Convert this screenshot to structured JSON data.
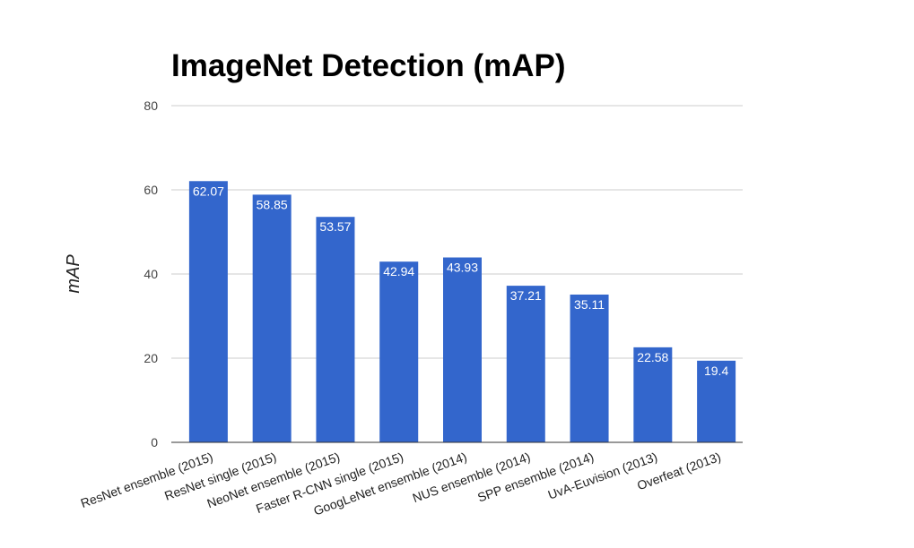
{
  "chart_data": {
    "type": "bar",
    "title": "ImageNet Detection (mAP)",
    "xlabel": "",
    "ylabel": "mAP",
    "ylim": [
      0,
      80
    ],
    "yticks": [
      0,
      20,
      40,
      60,
      80
    ],
    "grid": true,
    "legend": "none",
    "bar_color": "#3366cc",
    "categories": [
      "ResNet ensemble (2015)",
      "ResNet single (2015)",
      "NeoNet ensemble (2015)",
      "Faster R-CNN single (2015)",
      "GoogLeNet ensemble (2014)",
      "NUS ensemble (2014)",
      "SPP ensemble (2014)",
      "UvA-Euvision (2013)",
      "Overfeat (2013)"
    ],
    "values": [
      62.07,
      58.85,
      53.57,
      42.94,
      43.93,
      37.21,
      35.11,
      22.58,
      19.4
    ],
    "data_labels": [
      "62.07",
      "58.85",
      "53.57",
      "42.94",
      "43.93",
      "37.21",
      "35.11",
      "22.58",
      "19.4"
    ]
  }
}
